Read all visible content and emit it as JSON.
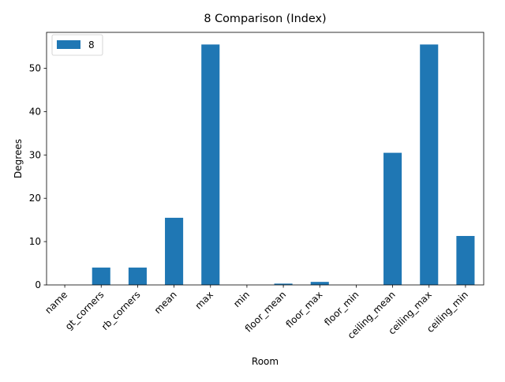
{
  "chart_data": {
    "type": "bar",
    "title": "8 Comparison (Index)",
    "xlabel": "Room",
    "ylabel": "Degrees",
    "categories": [
      "name",
      "gt_corners",
      "rb_corners",
      "mean",
      "max",
      "min",
      "floor_mean",
      "floor_max",
      "floor_min",
      "ceiling_mean",
      "ceiling_max",
      "ceiling_min"
    ],
    "series": [
      {
        "name": "8",
        "color": "#1f77b4",
        "values": [
          0,
          4,
          4,
          15.5,
          55.5,
          0,
          0.3,
          0.7,
          0,
          30.5,
          55.5,
          11.3
        ]
      }
    ],
    "ylim": [
      0,
      58.3
    ],
    "yticks": [
      0,
      10,
      20,
      30,
      40,
      50
    ],
    "legend": "top-left",
    "grid": false,
    "x_tick_rotation": 45
  }
}
